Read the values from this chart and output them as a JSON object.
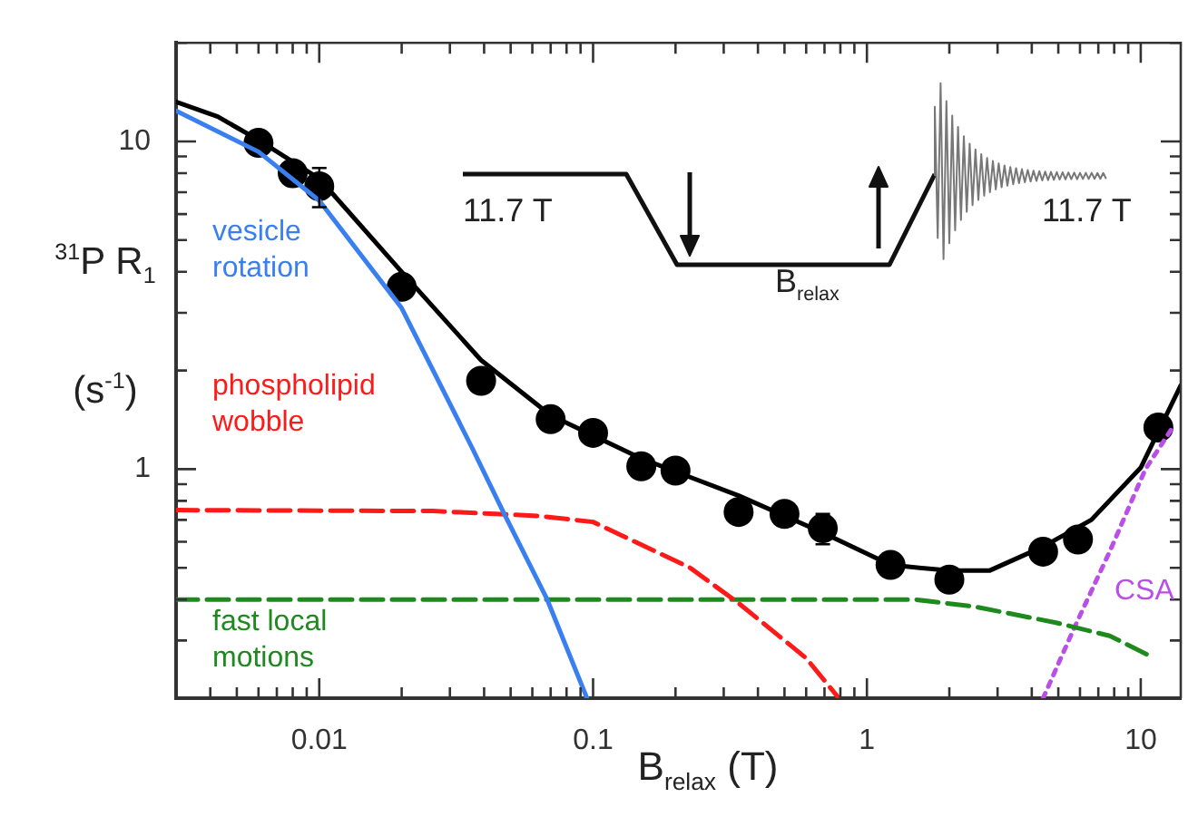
{
  "chart_data": {
    "type": "line",
    "xlabel": "B$_{relax}$ (T)",
    "ylabel": "$^{31}$P R$_{1}$ (s$^{-1}$)",
    "log": "xy",
    "grid": false,
    "legend": false,
    "xlim": [
      0.003,
      14
    ],
    "ylim": [
      0.2,
      20
    ],
    "xticks": [
      {
        "value": 0.003,
        "label": null
      },
      {
        "value": 0.004,
        "label": null
      },
      {
        "value": 0.005,
        "label": null
      },
      {
        "value": 0.006,
        "label": null
      },
      {
        "value": 0.007,
        "label": null
      },
      {
        "value": 0.008,
        "label": null
      },
      {
        "value": 0.009,
        "label": null
      },
      0.01,
      {
        "value": 0.02,
        "label": null
      },
      {
        "value": 0.03,
        "label": null
      },
      {
        "value": 0.04,
        "label": null
      },
      {
        "value": 0.05,
        "label": null
      },
      {
        "value": 0.06,
        "label": null
      },
      {
        "value": 0.07,
        "label": null
      },
      {
        "value": 0.08,
        "label": null
      },
      {
        "value": 0.09,
        "label": null
      },
      0.1,
      {
        "value": 0.2,
        "label": null
      },
      {
        "value": 0.3,
        "label": null
      },
      {
        "value": 0.4,
        "label": null
      },
      {
        "value": 0.5,
        "label": null
      },
      {
        "value": 0.6,
        "label": null
      },
      {
        "value": 0.7,
        "label": null
      },
      {
        "value": 0.8,
        "label": null
      },
      {
        "value": 0.9,
        "label": null
      },
      1,
      {
        "value": 2,
        "label": null
      },
      {
        "value": 3,
        "label": null
      },
      {
        "value": 4,
        "label": null
      },
      {
        "value": 5,
        "label": null
      },
      {
        "value": 6,
        "label": null
      },
      {
        "value": 7,
        "label": null
      },
      {
        "value": 8,
        "label": null
      },
      {
        "value": 9,
        "label": null
      },
      10
    ],
    "yticks": [
      {
        "value": 0.2,
        "label": null
      },
      {
        "value": 0.3,
        "label": null
      },
      {
        "value": 0.4,
        "label": null
      },
      {
        "value": 0.5,
        "label": null
      },
      {
        "value": 0.6,
        "label": null
      },
      {
        "value": 0.7,
        "label": null
      },
      {
        "value": 0.8,
        "label": null
      },
      {
        "value": 0.9,
        "label": null
      },
      1,
      {
        "value": 2,
        "label": null
      },
      {
        "value": 3,
        "label": null
      },
      {
        "value": 4,
        "label": null
      },
      {
        "value": 5,
        "label": null
      },
      {
        "value": 6,
        "label": null
      },
      {
        "value": 7,
        "label": null
      },
      {
        "value": 8,
        "label": null
      },
      {
        "value": 9,
        "label": null
      },
      10,
      {
        "value": 20,
        "label": null
      }
    ],
    "annotations": [
      "11.7 T",
      "B$_{relax}$",
      "11.7 T"
    ],
    "series": [
      {
        "name": "vesicle rotation",
        "color": "#3a7ff0",
        "line_style": "solid",
        "x": [
          0.003,
          0.006,
          0.01,
          0.02,
          0.036,
          0.047,
          0.068,
          0.095
        ],
        "values": [
          12.4,
          9.3,
          6.6,
          3.1,
          1.17,
          0.74,
          0.4,
          0.2
        ]
      },
      {
        "name": "phospholipid wobble",
        "color": "#ff1a1a",
        "line_style": "dashed",
        "x": [
          0.003,
          0.026,
          0.063,
          0.1,
          0.226,
          0.34,
          0.6,
          0.79
        ],
        "values": [
          0.75,
          0.745,
          0.72,
          0.69,
          0.5,
          0.39,
          0.265,
          0.2
        ]
      },
      {
        "name": "fast local motions",
        "color": "#1e8a1e",
        "line_style": "dashed",
        "x": [
          0.003,
          1.5,
          2.5,
          4.9,
          7.7,
          11.2
        ],
        "values": [
          0.4,
          0.4,
          0.38,
          0.34,
          0.31,
          0.265
        ]
      },
      {
        "name": "CSA",
        "color": "#b94fe6",
        "line_style": "dotted",
        "x": [
          4.4,
          5.7,
          7.7,
          10.4,
          13
        ],
        "values": [
          0.2,
          0.326,
          0.56,
          1.0,
          1.33
        ]
      },
      {
        "color": "#000000",
        "line_style": "solid",
        "x": [
          0.003,
          0.00426,
          0.006,
          0.01,
          0.02,
          0.039,
          0.07,
          0.149,
          0.34,
          0.69,
          1.22,
          2.0,
          2.8,
          4.4,
          6.6,
          10,
          14
        ],
        "values": [
          13.2,
          11.9,
          10.1,
          7.7,
          4.0,
          2.15,
          1.46,
          1.08,
          0.83,
          0.64,
          0.51,
          0.49,
          0.49,
          0.58,
          0.7,
          1.01,
          1.8
        ]
      },
      {
        "type": "scatter",
        "color": "#000000",
        "marker": "circle",
        "x": [
          0.006,
          0.008,
          0.01,
          0.02,
          0.039,
          0.07,
          0.1,
          0.15,
          0.2,
          0.34,
          0.5,
          0.69,
          1.22,
          2.0,
          4.4,
          5.9,
          11.6
        ],
        "values": [
          9.9,
          8.0,
          7.3,
          3.6,
          1.86,
          1.42,
          1.29,
          1.02,
          0.99,
          0.74,
          0.73,
          0.66,
          0.51,
          0.46,
          0.56,
          0.61,
          1.34
        ],
        "errors": [
          null,
          null,
          [
            6.3,
            8.3
          ],
          null,
          null,
          null,
          null,
          null,
          null,
          null,
          null,
          [
            0.59,
            0.73
          ],
          null,
          null,
          null,
          null,
          null
        ]
      }
    ]
  }
}
